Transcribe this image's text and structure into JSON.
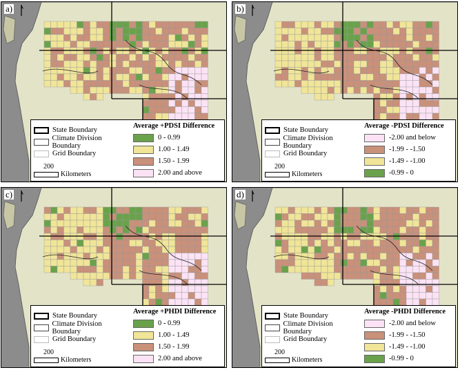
{
  "colors": {
    "ocean": "#8c8c8c",
    "land": "#e3e3c8",
    "coast_land": "#c7c7a6",
    "green": "#6aa24c",
    "yellow": "#f0e598",
    "brown": "#c9907a",
    "pink": "#fbe3f5"
  },
  "common_legend": {
    "state": "State Boundary",
    "climate": "Climate Division Boundary",
    "grid": "Grid Boundary",
    "scale_value": "200",
    "scale_unit": "Kilometers"
  },
  "panels": [
    {
      "label": "a)",
      "title": "Average +PDSI Difference",
      "classes": [
        {
          "label": "0 - 0.99",
          "color": "#6aa24c"
        },
        {
          "label": "1.00 - 1.49",
          "color": "#f0e598"
        },
        {
          "label": "1.50 - 1.99",
          "color": "#c9907a"
        },
        {
          "label": "2.00 and above",
          "color": "#fbe3f5"
        }
      ]
    },
    {
      "label": "b)",
      "title": "Average -PDSI Difference",
      "classes": [
        {
          "label": "-2.00  and  below",
          "color": "#fbe3f5"
        },
        {
          "label": "-1.99 - -1.50",
          "color": "#c9907a"
        },
        {
          "label": "-1.49 - -1.00",
          "color": "#f0e598"
        },
        {
          "label": "-0.99 - 0",
          "color": "#6aa24c"
        }
      ]
    },
    {
      "label": "c)",
      "title": "Average +PHDI Difference",
      "classes": [
        {
          "label": "0 - 0.99",
          "color": "#6aa24c"
        },
        {
          "label": "1.00 - 1.49",
          "color": "#f0e598"
        },
        {
          "label": "1.50 - 1.99",
          "color": "#c9907a"
        },
        {
          "label": "2.00 and above",
          "color": "#fbe3f5"
        }
      ]
    },
    {
      "label": "d)",
      "title": "Average -PHDI Difference",
      "classes": [
        {
          "label": "-2.00 and below",
          "color": "#fbe3f5"
        },
        {
          "label": "-1.99 - -1.50",
          "color": "#c9907a"
        },
        {
          "label": "-1.49 - -1.00",
          "color": "#f0e598"
        },
        {
          "label": "-0.99 - 0",
          "color": "#6aa24c"
        }
      ]
    }
  ]
}
